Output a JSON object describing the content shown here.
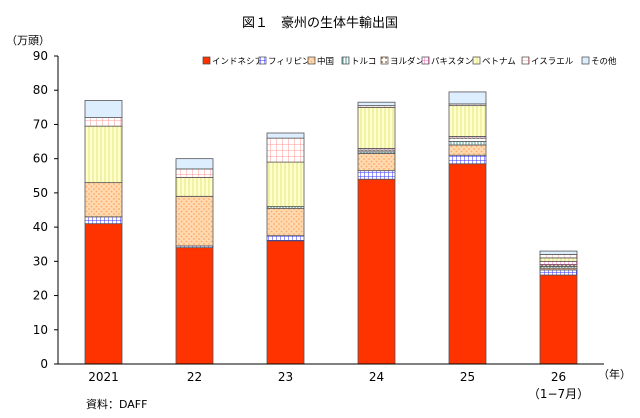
{
  "chart_data": {
    "type": "bar",
    "stacked": true,
    "title": "図１　豪州の生体牛輸出国",
    "ylabel": "（万頭）",
    "xlabel": "（年）",
    "source": "資料：DAFF",
    "ylim": [
      0,
      90
    ],
    "yticks": [
      0,
      10,
      20,
      30,
      40,
      50,
      60,
      70,
      80,
      90
    ],
    "categories": [
      "2021",
      "22",
      "23",
      "24",
      "25",
      "26"
    ],
    "category_sublabels": [
      "",
      "",
      "",
      "",
      "",
      "（1−7月）"
    ],
    "legend_position": "top-right",
    "series": [
      {
        "name": "インドネシア",
        "color": "#ff3300",
        "pattern": "solid",
        "values": [
          41,
          34,
          36,
          54,
          58.5,
          26
        ]
      },
      {
        "name": "フィリピン",
        "color": "#3333ff",
        "pattern": "grid",
        "values": [
          2,
          0.5,
          1.5,
          2.5,
          2.5,
          1.5
        ]
      },
      {
        "name": "中国",
        "color": "#ffcc99",
        "pattern": "dots",
        "values": [
          10,
          14.5,
          8,
          5,
          3,
          0.5
        ]
      },
      {
        "name": "トルコ",
        "color": "#99cccc",
        "pattern": "vlines",
        "values": [
          0,
          0,
          0.5,
          0.5,
          1,
          0.5
        ]
      },
      {
        "name": "ヨルダン",
        "color": "#cc9966",
        "pattern": "dots",
        "values": [
          0,
          0,
          0,
          0.5,
          1,
          0.5
        ]
      },
      {
        "name": "パキスタン",
        "color": "#ff99cc",
        "pattern": "grid",
        "values": [
          0,
          0,
          0,
          0.5,
          0.5,
          1
        ]
      },
      {
        "name": "ベトナム",
        "color": "#ffffaa",
        "pattern": "vlines",
        "values": [
          16.5,
          5.5,
          13,
          12,
          9,
          1
        ]
      },
      {
        "name": "イスラエル",
        "color": "#ff9999",
        "pattern": "grid",
        "values": [
          2.5,
          2.5,
          7,
          0.5,
          0.5,
          1
        ]
      },
      {
        "name": "その他",
        "color": "#dde8f5",
        "pattern": "solid",
        "values": [
          5,
          3,
          1.5,
          1,
          3.5,
          1
        ]
      }
    ]
  }
}
